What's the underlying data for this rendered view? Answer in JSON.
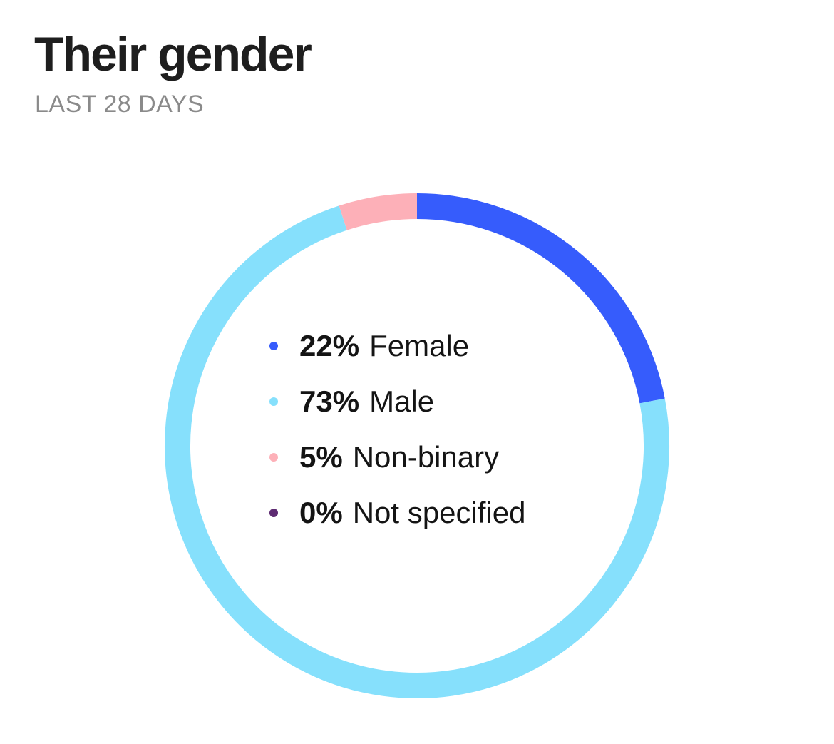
{
  "header": {
    "title": "Their gender",
    "subtitle": "LAST 28 DAYS"
  },
  "chart_data": {
    "type": "pie",
    "title": "Their gender",
    "subtitle": "LAST 28 DAYS",
    "donut": true,
    "categories": [
      "Female",
      "Male",
      "Non-binary",
      "Not specified"
    ],
    "values": [
      22,
      73,
      5,
      0
    ],
    "unit": "%",
    "colors": [
      "#365cfc",
      "#86e0fc",
      "#fdb0b8",
      "#5e2b72"
    ],
    "start_angle": "12 o'clock",
    "direction": "clockwise",
    "legend_position": "center",
    "legend": [
      {
        "pct": "22%",
        "label": "Female",
        "color": "#365cfc"
      },
      {
        "pct": "73%",
        "label": "Male",
        "color": "#86e0fc"
      },
      {
        "pct": "5%",
        "label": "Non-binary",
        "color": "#fdb0b8"
      },
      {
        "pct": "0%",
        "label": "Not specified",
        "color": "#5e2b72"
      }
    ]
  }
}
